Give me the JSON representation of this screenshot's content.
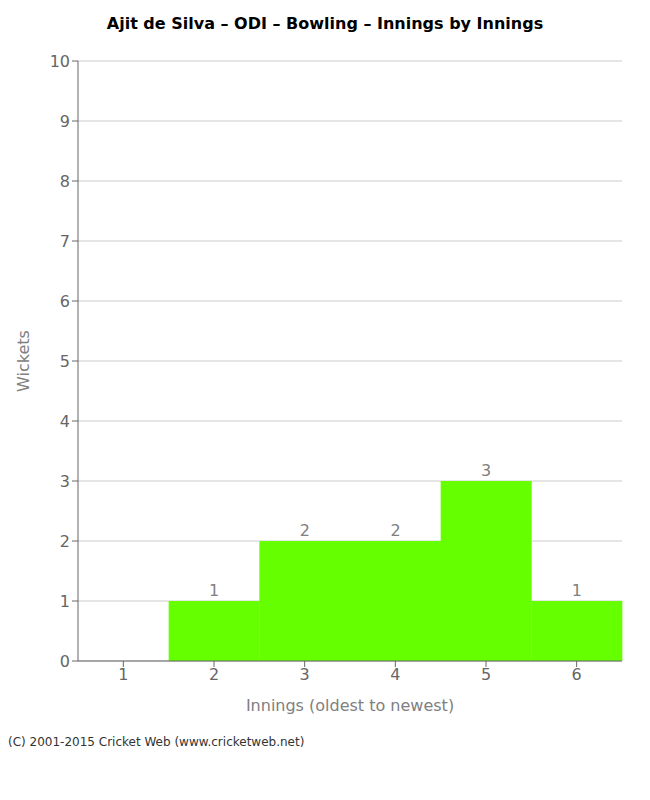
{
  "chart_data": {
    "type": "bar",
    "title": "Ajit de Silva – ODI – Bowling – Innings by Innings",
    "xlabel": "Innings (oldest to newest)",
    "ylabel": "Wickets",
    "categories": [
      1,
      2,
      3,
      4,
      5,
      6
    ],
    "values": [
      0,
      1,
      2,
      2,
      3,
      1
    ],
    "color": "#66ff00",
    "ylim": [
      0,
      10
    ],
    "yticks": [
      0,
      1,
      2,
      3,
      4,
      5,
      6,
      7,
      8,
      9,
      10
    ],
    "grid": true,
    "data_labels": true,
    "annotations": [
      "(C) 2001-2015 Cricket Web (www.cricketweb.net)"
    ]
  }
}
